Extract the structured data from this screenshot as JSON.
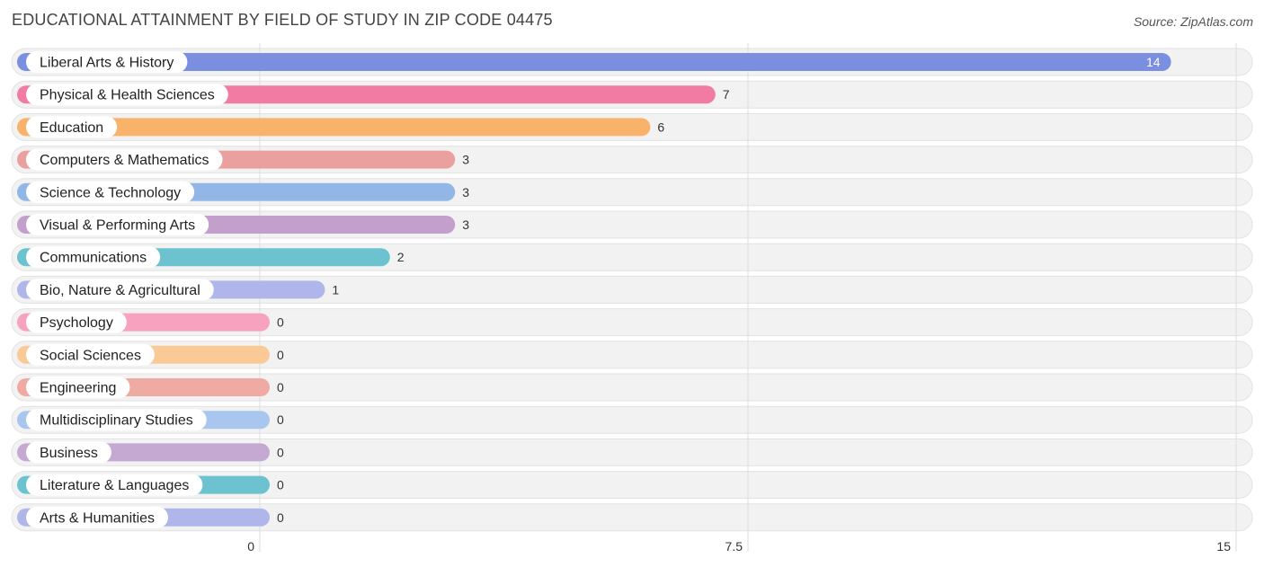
{
  "title": "EDUCATIONAL ATTAINMENT BY FIELD OF STUDY IN ZIP CODE 04475",
  "source": "Source: ZipAtlas.com",
  "chart_data": {
    "type": "bar",
    "orientation": "horizontal",
    "categories": [
      "Liberal Arts & History",
      "Physical & Health Sciences",
      "Education",
      "Computers & Mathematics",
      "Science & Technology",
      "Visual & Performing Arts",
      "Communications",
      "Bio, Nature & Agricultural",
      "Psychology",
      "Social Sciences",
      "Engineering",
      "Multidisciplinary Studies",
      "Business",
      "Literature & Languages",
      "Arts & Humanities"
    ],
    "values": [
      14,
      7,
      6,
      3,
      3,
      3,
      2,
      1,
      0,
      0,
      0,
      0,
      0,
      0,
      0
    ],
    "colors": [
      "#7b8fe0",
      "#f27ba3",
      "#f8b26a",
      "#eba0a0",
      "#92b7e6",
      "#c3a0cc",
      "#6cc3cf",
      "#aeb6ea",
      "#f7a3c0",
      "#f9c996",
      "#f0aaa4",
      "#a9c6ee",
      "#c6a9d3",
      "#6cc3cf",
      "#aeb6ea"
    ],
    "xlim": [
      0,
      15
    ],
    "xticks": [
      "0",
      "7.5",
      "15"
    ],
    "grid": true
  }
}
